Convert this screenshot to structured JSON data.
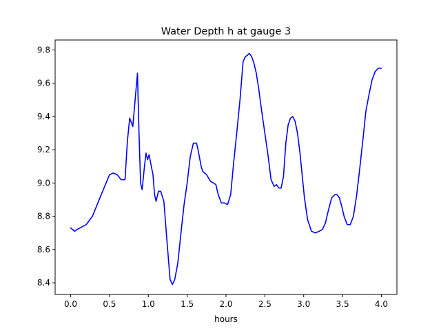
{
  "chart_data": {
    "type": "line",
    "title": "Water Depth h at gauge 3",
    "xlabel": "hours",
    "ylabel": "",
    "xlim": [
      -0.2,
      4.2
    ],
    "ylim": [
      8.33,
      9.86
    ],
    "xticks": [
      0.0,
      0.5,
      1.0,
      1.5,
      2.0,
      2.5,
      3.0,
      3.5,
      4.0
    ],
    "xtick_labels": [
      "0.0",
      "0.5",
      "1.0",
      "1.5",
      "2.0",
      "2.5",
      "3.0",
      "3.5",
      "4.0"
    ],
    "yticks": [
      8.4,
      8.6,
      8.8,
      9.0,
      9.2,
      9.4,
      9.6,
      9.8
    ],
    "ytick_labels": [
      "8.4",
      "8.6",
      "8.8",
      "9.0",
      "9.2",
      "9.4",
      "9.6",
      "9.8"
    ],
    "grid": false,
    "series": [
      {
        "color": "#0000ff",
        "x": [
          0.0,
          0.05,
          0.08,
          0.12,
          0.2,
          0.28,
          0.35,
          0.42,
          0.5,
          0.55,
          0.6,
          0.65,
          0.7,
          0.73,
          0.76,
          0.8,
          0.83,
          0.86,
          0.88,
          0.9,
          0.92,
          0.95,
          0.97,
          0.99,
          1.01,
          1.03,
          1.06,
          1.08,
          1.1,
          1.13,
          1.16,
          1.2,
          1.24,
          1.28,
          1.31,
          1.34,
          1.38,
          1.42,
          1.46,
          1.5,
          1.54,
          1.58,
          1.62,
          1.64,
          1.66,
          1.68,
          1.7,
          1.75,
          1.8,
          1.84,
          1.87,
          1.9,
          1.94,
          1.98,
          2.02,
          2.06,
          2.1,
          2.14,
          2.18,
          2.22,
          2.25,
          2.28,
          2.3,
          2.33,
          2.36,
          2.39,
          2.42,
          2.46,
          2.5,
          2.54,
          2.58,
          2.62,
          2.65,
          2.68,
          2.71,
          2.74,
          2.77,
          2.8,
          2.83,
          2.86,
          2.89,
          2.92,
          2.95,
          2.98,
          3.01,
          3.05,
          3.1,
          3.15,
          3.2,
          3.24,
          3.28,
          3.32,
          3.36,
          3.4,
          3.43,
          3.46,
          3.49,
          3.52,
          3.56,
          3.6,
          3.64,
          3.68,
          3.72,
          3.76,
          3.8,
          3.84,
          3.88,
          3.92,
          3.96,
          4.0
        ],
        "y": [
          8.73,
          8.71,
          8.72,
          8.73,
          8.75,
          8.8,
          8.88,
          8.96,
          9.05,
          9.06,
          9.05,
          9.02,
          9.02,
          9.25,
          9.39,
          9.34,
          9.5,
          9.66,
          9.3,
          9.0,
          8.96,
          9.1,
          9.18,
          9.14,
          9.17,
          9.12,
          9.05,
          8.93,
          8.89,
          8.95,
          8.95,
          8.89,
          8.65,
          8.42,
          8.39,
          8.42,
          8.52,
          8.7,
          8.87,
          9.0,
          9.16,
          9.24,
          9.24,
          9.2,
          9.15,
          9.1,
          9.07,
          9.05,
          9.01,
          9.0,
          8.99,
          8.93,
          8.88,
          8.88,
          8.87,
          8.93,
          9.13,
          9.31,
          9.5,
          9.73,
          9.76,
          9.77,
          9.78,
          9.76,
          9.72,
          9.66,
          9.57,
          9.43,
          9.3,
          9.17,
          9.02,
          8.98,
          8.99,
          8.97,
          8.97,
          9.04,
          9.24,
          9.35,
          9.39,
          9.4,
          9.37,
          9.3,
          9.19,
          9.05,
          8.91,
          8.78,
          8.71,
          8.7,
          8.71,
          8.72,
          8.76,
          8.84,
          8.91,
          8.93,
          8.93,
          8.91,
          8.86,
          8.8,
          8.75,
          8.75,
          8.8,
          8.92,
          9.08,
          9.25,
          9.43,
          9.53,
          9.62,
          9.67,
          9.69,
          9.69
        ]
      }
    ]
  }
}
